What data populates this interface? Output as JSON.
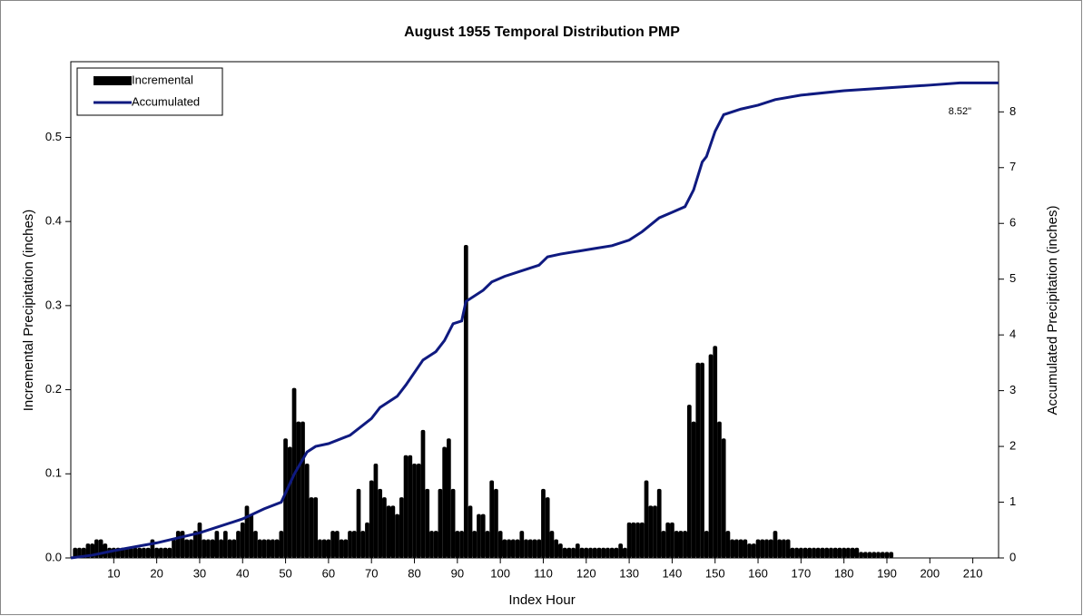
{
  "chart_data": {
    "type": "bar-line",
    "title": "August 1955 Temporal Distribution PMP",
    "x_label": "Index Hour",
    "y_label": "Incremental Precipitation (inches)",
    "y2_label": "Accumulated Precipitation (inches)",
    "annotation": {
      "text": "8.52\"",
      "x": 207,
      "y": 8.0
    },
    "legend": "top-left",
    "xlim": [
      0,
      216
    ],
    "xticks": [
      10,
      20,
      30,
      40,
      50,
      60,
      70,
      80,
      90,
      100,
      110,
      120,
      130,
      140,
      150,
      160,
      170,
      180,
      190,
      200,
      210
    ],
    "ylim": [
      0,
      0.59
    ],
    "yticks": [
      {
        "value": 0,
        "label": "0.0"
      },
      0.1,
      0.2,
      0.3,
      0.4,
      0.5
    ],
    "y2lim": [
      0,
      8.9
    ],
    "y2ticks": [
      0,
      1,
      2,
      3,
      4,
      5,
      6,
      7,
      8
    ],
    "series": [
      {
        "name": "Incremental",
        "kind": "bar",
        "color": "#000000",
        "x": [
          1,
          2,
          3,
          4,
          5,
          6,
          7,
          8,
          9,
          10,
          11,
          12,
          13,
          14,
          15,
          16,
          17,
          18,
          19,
          20,
          21,
          22,
          23,
          24,
          25,
          26,
          27,
          28,
          29,
          30,
          31,
          32,
          33,
          34,
          35,
          36,
          37,
          38,
          39,
          40,
          41,
          42,
          43,
          44,
          45,
          46,
          47,
          48,
          49,
          50,
          51,
          52,
          53,
          54,
          55,
          56,
          57,
          58,
          59,
          60,
          61,
          62,
          63,
          64,
          65,
          66,
          67,
          68,
          69,
          70,
          71,
          72,
          73,
          74,
          75,
          76,
          77,
          78,
          79,
          80,
          81,
          82,
          83,
          84,
          85,
          86,
          87,
          88,
          89,
          90,
          91,
          92,
          93,
          94,
          95,
          96,
          97,
          98,
          99,
          100,
          101,
          102,
          103,
          104,
          105,
          106,
          107,
          108,
          109,
          110,
          111,
          112,
          113,
          114,
          115,
          116,
          117,
          118,
          119,
          120,
          121,
          122,
          123,
          124,
          125,
          126,
          127,
          128,
          129,
          130,
          131,
          132,
          133,
          134,
          135,
          136,
          137,
          138,
          139,
          140,
          141,
          142,
          143,
          144,
          145,
          146,
          147,
          148,
          149,
          150,
          151,
          152,
          153,
          154,
          155,
          156,
          157,
          158,
          159,
          160,
          161,
          162,
          163,
          164,
          165,
          166,
          167,
          168,
          169,
          170,
          171,
          172,
          173,
          174,
          175,
          176,
          177,
          178,
          179,
          180,
          181,
          182,
          183,
          184,
          185,
          186,
          187,
          188,
          189,
          190,
          191
        ],
        "values": [
          0.01,
          0.01,
          0.01,
          0.015,
          0.015,
          0.02,
          0.02,
          0.015,
          0.01,
          0.01,
          0.01,
          0.01,
          0.01,
          0.01,
          0.01,
          0.01,
          0.01,
          0.01,
          0.02,
          0.01,
          0.01,
          0.01,
          0.01,
          0.02,
          0.03,
          0.03,
          0.02,
          0.02,
          0.03,
          0.04,
          0.02,
          0.02,
          0.02,
          0.03,
          0.02,
          0.03,
          0.02,
          0.02,
          0.03,
          0.04,
          0.06,
          0.05,
          0.03,
          0.02,
          0.02,
          0.02,
          0.02,
          0.02,
          0.03,
          0.14,
          0.13,
          0.2,
          0.16,
          0.16,
          0.11,
          0.07,
          0.07,
          0.02,
          0.02,
          0.02,
          0.03,
          0.03,
          0.02,
          0.02,
          0.03,
          0.03,
          0.08,
          0.03,
          0.04,
          0.09,
          0.11,
          0.08,
          0.07,
          0.06,
          0.06,
          0.05,
          0.07,
          0.12,
          0.12,
          0.11,
          0.11,
          0.15,
          0.08,
          0.03,
          0.03,
          0.08,
          0.13,
          0.14,
          0.08,
          0.03,
          0.03,
          0.37,
          0.06,
          0.03,
          0.05,
          0.05,
          0.03,
          0.09,
          0.08,
          0.03,
          0.02,
          0.02,
          0.02,
          0.02,
          0.03,
          0.02,
          0.02,
          0.02,
          0.02,
          0.08,
          0.07,
          0.03,
          0.02,
          0.015,
          0.01,
          0.01,
          0.01,
          0.015,
          0.01,
          0.01,
          0.01,
          0.01,
          0.01,
          0.01,
          0.01,
          0.01,
          0.01,
          0.015,
          0.01,
          0.04,
          0.04,
          0.04,
          0.04,
          0.09,
          0.06,
          0.06,
          0.08,
          0.03,
          0.04,
          0.04,
          0.03,
          0.03,
          0.03,
          0.18,
          0.16,
          0.23,
          0.23,
          0.03,
          0.24,
          0.25,
          0.16,
          0.14,
          0.03,
          0.02,
          0.02,
          0.02,
          0.02,
          0.015,
          0.015,
          0.02,
          0.02,
          0.02,
          0.02,
          0.03,
          0.02,
          0.02,
          0.02,
          0.01,
          0.01,
          0.01,
          0.01,
          0.01,
          0.01,
          0.01,
          0.01,
          0.01,
          0.01,
          0.01,
          0.01,
          0.01,
          0.01,
          0.01,
          0.01,
          0.005,
          0.005,
          0.005,
          0.005,
          0.005,
          0.005,
          0.005,
          0.005
        ]
      },
      {
        "name": "Accumulated",
        "kind": "line",
        "axis": "y2",
        "color": "#0f1a80",
        "x": [
          0,
          5,
          10,
          20,
          30,
          40,
          45,
          49,
          52,
          55,
          57,
          60,
          65,
          70,
          72,
          76,
          78,
          82,
          85,
          87,
          89,
          91,
          92,
          96,
          98,
          101,
          105,
          109,
          111,
          114,
          118,
          122,
          126,
          130,
          133,
          137,
          140,
          143,
          145,
          147,
          148,
          150,
          152,
          156,
          160,
          164,
          170,
          180,
          190,
          200,
          207,
          216
        ],
        "values": [
          0,
          0.05,
          0.13,
          0.27,
          0.45,
          0.7,
          0.88,
          1.0,
          1.5,
          1.9,
          2.0,
          2.05,
          2.2,
          2.5,
          2.7,
          2.9,
          3.1,
          3.55,
          3.7,
          3.9,
          4.2,
          4.25,
          4.6,
          4.8,
          4.95,
          5.05,
          5.15,
          5.25,
          5.4,
          5.45,
          5.5,
          5.55,
          5.6,
          5.7,
          5.85,
          6.1,
          6.2,
          6.3,
          6.6,
          7.1,
          7.2,
          7.65,
          7.95,
          8.05,
          8.12,
          8.22,
          8.3,
          8.38,
          8.43,
          8.48,
          8.52,
          8.52
        ]
      }
    ]
  }
}
